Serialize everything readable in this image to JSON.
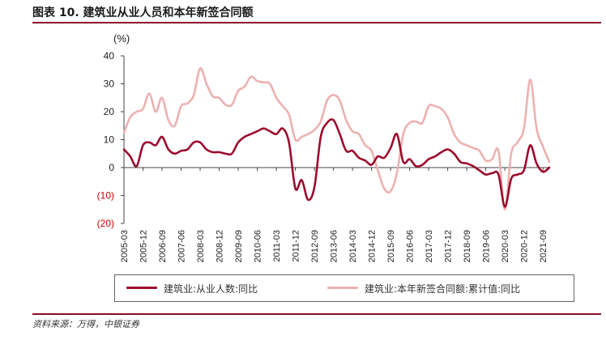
{
  "figure": {
    "title": "图表 10. 建筑业从业人员和本年新签合同额",
    "source": "资料来源：万得，中银证券"
  },
  "colors": {
    "series1": "#9b0c2c",
    "series2": "#ecb1b1",
    "accent": "#8b0e2a",
    "negative_label": "#d00000"
  },
  "chart_data": {
    "type": "line",
    "unit_label": "(%)",
    "ylim": [
      -20,
      40
    ],
    "y_ticks": [
      40,
      30,
      20,
      10,
      0,
      -10,
      -20
    ],
    "y_tick_labels": [
      "40",
      "30",
      "20",
      "10",
      "0",
      "(10)",
      "(20)"
    ],
    "x_start": "2005-03",
    "x_end": "2021-12",
    "x_tick_labels": [
      "2005-03",
      "2005-12",
      "2006-09",
      "2007-06",
      "2008-03",
      "2008-12",
      "2009-09",
      "2010-06",
      "2011-03",
      "2011-12",
      "2012-09",
      "2013-06",
      "2014-03",
      "2014-12",
      "2015-09",
      "2016-06",
      "2017-03",
      "2017-12",
      "2018-09",
      "2019-06",
      "2020-03",
      "2020-12",
      "2021-09"
    ],
    "grid": false,
    "legend_position": "bottom",
    "series": [
      {
        "name": "建筑业:从业人数:同比",
        "points": [
          [
            "2005-03",
            6.5
          ],
          [
            "2005-06",
            4.0
          ],
          [
            "2005-09",
            0.5
          ],
          [
            "2005-12",
            8.0
          ],
          [
            "2006-03",
            9.0
          ],
          [
            "2006-06",
            8.0
          ],
          [
            "2006-09",
            11.0
          ],
          [
            "2006-12",
            6.5
          ],
          [
            "2007-03",
            5.0
          ],
          [
            "2007-06",
            6.0
          ],
          [
            "2007-09",
            6.5
          ],
          [
            "2007-12",
            9.0
          ],
          [
            "2008-03",
            9.0
          ],
          [
            "2008-06",
            6.5
          ],
          [
            "2008-09",
            5.5
          ],
          [
            "2008-12",
            5.5
          ],
          [
            "2009-03",
            5.0
          ],
          [
            "2009-06",
            5.0
          ],
          [
            "2009-09",
            9.0
          ],
          [
            "2009-12",
            11.0
          ],
          [
            "2010-03",
            12.0
          ],
          [
            "2010-06",
            13.0
          ],
          [
            "2010-09",
            14.0
          ],
          [
            "2010-12",
            13.0
          ],
          [
            "2011-03",
            12.0
          ],
          [
            "2011-06",
            14.0
          ],
          [
            "2011-09",
            9.0
          ],
          [
            "2011-12",
            -7.5
          ],
          [
            "2012-03",
            -4.5
          ],
          [
            "2012-06",
            -11.5
          ],
          [
            "2012-09",
            -7.0
          ],
          [
            "2012-12",
            11.0
          ],
          [
            "2013-03",
            16.0
          ],
          [
            "2013-06",
            17.0
          ],
          [
            "2013-09",
            12.0
          ],
          [
            "2013-12",
            6.0
          ],
          [
            "2014-03",
            6.0
          ],
          [
            "2014-06",
            3.5
          ],
          [
            "2014-09",
            2.5
          ],
          [
            "2014-12",
            1.0
          ],
          [
            "2015-03",
            4.0
          ],
          [
            "2015-06",
            3.5
          ],
          [
            "2015-09",
            7.0
          ],
          [
            "2015-12",
            12.0
          ],
          [
            "2016-03",
            2.0
          ],
          [
            "2016-06",
            3.0
          ],
          [
            "2016-09",
            0.5
          ],
          [
            "2016-12",
            1.0
          ],
          [
            "2017-03",
            3.0
          ],
          [
            "2017-06",
            4.0
          ],
          [
            "2017-09",
            5.5
          ],
          [
            "2017-12",
            6.5
          ],
          [
            "2018-03",
            5.0
          ],
          [
            "2018-06",
            2.0
          ],
          [
            "2018-09",
            1.5
          ],
          [
            "2018-12",
            0.5
          ],
          [
            "2019-03",
            -1.0
          ],
          [
            "2019-06",
            -2.5
          ],
          [
            "2019-09",
            -2.0
          ],
          [
            "2019-12",
            -2.5
          ],
          [
            "2020-03",
            -14.0
          ],
          [
            "2020-06",
            -4.0
          ],
          [
            "2020-09",
            -2.5
          ],
          [
            "2020-12",
            -1.0
          ],
          [
            "2021-03",
            8.0
          ],
          [
            "2021-06",
            1.5
          ],
          [
            "2021-09",
            -1.5
          ],
          [
            "2021-12",
            0.0
          ]
        ]
      },
      {
        "name": "建筑业:本年新签合同额:累计值:同比",
        "points": [
          [
            "2005-03",
            12.5
          ],
          [
            "2005-06",
            18.0
          ],
          [
            "2005-09",
            20.0
          ],
          [
            "2005-12",
            21.0
          ],
          [
            "2006-03",
            26.5
          ],
          [
            "2006-06",
            20.0
          ],
          [
            "2006-09",
            25.0
          ],
          [
            "2006-12",
            17.0
          ],
          [
            "2007-03",
            15.0
          ],
          [
            "2007-06",
            22.0
          ],
          [
            "2007-09",
            23.0
          ],
          [
            "2007-12",
            26.0
          ],
          [
            "2008-03",
            35.5
          ],
          [
            "2008-06",
            30.0
          ],
          [
            "2008-09",
            25.5
          ],
          [
            "2008-12",
            25.0
          ],
          [
            "2009-03",
            22.5
          ],
          [
            "2009-06",
            22.5
          ],
          [
            "2009-09",
            27.5
          ],
          [
            "2009-12",
            29.0
          ],
          [
            "2010-03",
            32.5
          ],
          [
            "2010-06",
            31.0
          ],
          [
            "2010-09",
            30.5
          ],
          [
            "2010-12",
            30.0
          ],
          [
            "2011-03",
            25.0
          ],
          [
            "2011-06",
            22.0
          ],
          [
            "2011-09",
            19.0
          ],
          [
            "2011-12",
            10.0
          ],
          [
            "2012-03",
            11.0
          ],
          [
            "2012-06",
            12.0
          ],
          [
            "2012-09",
            13.5
          ],
          [
            "2012-12",
            16.5
          ],
          [
            "2013-03",
            24.0
          ],
          [
            "2013-06",
            26.0
          ],
          [
            "2013-09",
            24.0
          ],
          [
            "2013-12",
            17.0
          ],
          [
            "2014-03",
            13.0
          ],
          [
            "2014-06",
            12.0
          ],
          [
            "2014-09",
            8.0
          ],
          [
            "2014-12",
            6.0
          ],
          [
            "2015-03",
            -1.0
          ],
          [
            "2015-06",
            -7.5
          ],
          [
            "2015-09",
            -8.5
          ],
          [
            "2015-12",
            -2.0
          ],
          [
            "2016-03",
            12.0
          ],
          [
            "2016-06",
            16.0
          ],
          [
            "2016-09",
            16.5
          ],
          [
            "2016-12",
            16.0
          ],
          [
            "2017-03",
            22.0
          ],
          [
            "2017-06",
            22.0
          ],
          [
            "2017-09",
            21.0
          ],
          [
            "2017-12",
            18.0
          ],
          [
            "2018-03",
            12.0
          ],
          [
            "2018-06",
            9.0
          ],
          [
            "2018-09",
            8.0
          ],
          [
            "2018-12",
            7.0
          ],
          [
            "2019-03",
            6.0
          ],
          [
            "2019-06",
            2.5
          ],
          [
            "2019-09",
            3.0
          ],
          [
            "2019-12",
            6.0
          ],
          [
            "2020-03",
            -15.0
          ],
          [
            "2020-06",
            5.0
          ],
          [
            "2020-09",
            9.0
          ],
          [
            "2020-12",
            14.0
          ],
          [
            "2021-03",
            31.5
          ],
          [
            "2021-06",
            14.0
          ],
          [
            "2021-09",
            7.5
          ],
          [
            "2021-12",
            2.0
          ]
        ]
      }
    ]
  }
}
